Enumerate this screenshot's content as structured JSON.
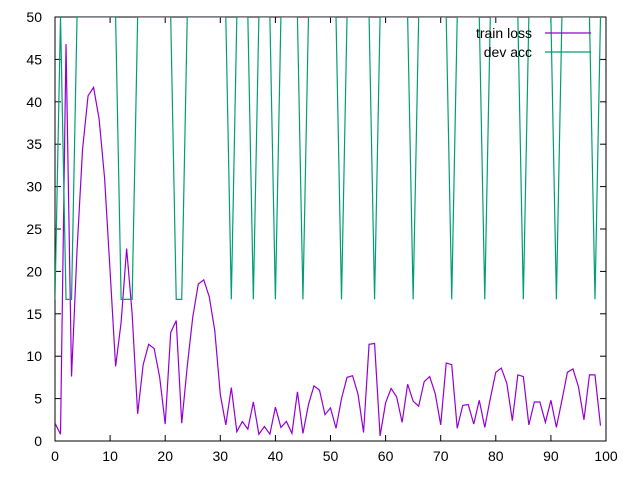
{
  "chart_data": {
    "type": "line",
    "title": "",
    "xlabel": "",
    "ylabel": "",
    "xlim": [
      0,
      100
    ],
    "ylim": [
      0,
      50
    ],
    "xticks": [
      0,
      10,
      20,
      30,
      40,
      50,
      60,
      70,
      80,
      90,
      100
    ],
    "yticks": [
      0,
      5,
      10,
      15,
      20,
      25,
      30,
      35,
      40,
      45,
      50
    ],
    "grid": false,
    "legend_position": "top-right",
    "series": [
      {
        "name": "train loss",
        "color": "#9400d3",
        "x": [
          0,
          1,
          2,
          3,
          4,
          5,
          6,
          7,
          8,
          9,
          10,
          11,
          12,
          13,
          14,
          15,
          16,
          17,
          18,
          19,
          20,
          21,
          22,
          23,
          24,
          25,
          26,
          27,
          28,
          29,
          30,
          31,
          32,
          33,
          34,
          35,
          36,
          37,
          38,
          39,
          40,
          41,
          42,
          43,
          44,
          45,
          46,
          47,
          48,
          49,
          50,
          51,
          52,
          53,
          54,
          55,
          56,
          57,
          58,
          59,
          60,
          61,
          62,
          63,
          64,
          65,
          66,
          67,
          68,
          69,
          70,
          71,
          72,
          73,
          74,
          75,
          76,
          77,
          78,
          79,
          80,
          81,
          82,
          83,
          84,
          85,
          86,
          87,
          88,
          89,
          90,
          91,
          92,
          93,
          94,
          95,
          96,
          97,
          98,
          99
        ],
        "y": [
          2.1,
          0.8,
          46.8,
          7.6,
          22.5,
          34.4,
          40.7,
          41.7,
          38.0,
          31.0,
          20.0,
          8.8,
          14.0,
          22.7,
          15.0,
          3.2,
          9.0,
          11.4,
          10.9,
          7.5,
          2.0,
          12.8,
          14.2,
          2.1,
          8.8,
          14.6,
          18.5,
          19.0,
          17.0,
          13.0,
          5.5,
          1.9,
          6.3,
          1.1,
          2.3,
          1.4,
          4.6,
          0.8,
          1.7,
          0.8,
          4.0,
          1.6,
          2.3,
          0.9,
          5.8,
          0.9,
          4.3,
          6.5,
          6.0,
          3.1,
          3.9,
          1.5,
          5.0,
          7.5,
          7.7,
          5.5,
          1.0,
          11.4,
          11.5,
          0.6,
          4.5,
          6.2,
          5.2,
          2.2,
          6.7,
          4.7,
          4.1,
          7.0,
          7.6,
          5.6,
          1.9,
          9.2,
          9.0,
          1.5,
          4.2,
          4.3,
          2.0,
          4.8,
          1.6,
          5.0,
          8.1,
          8.6,
          6.8,
          2.4,
          7.8,
          7.6,
          1.9,
          4.6,
          4.6,
          2.2,
          4.8,
          1.6,
          4.8,
          8.1,
          8.5,
          6.4,
          2.5,
          7.8,
          7.8,
          1.8
        ]
      },
      {
        "name": "dev acc",
        "color": "#009e73",
        "x": [
          0,
          1,
          2,
          3,
          4,
          11,
          12,
          13,
          14,
          15,
          21,
          22,
          23,
          24,
          31,
          32,
          33,
          35,
          36,
          37,
          39,
          40,
          41,
          44,
          45,
          46,
          51,
          52,
          53,
          57,
          58,
          59,
          64,
          65,
          66,
          71,
          72,
          73,
          77,
          78,
          79,
          84,
          85,
          86,
          90,
          91,
          92,
          97,
          98,
          99
        ],
        "y": [
          16.7,
          50,
          16.7,
          16.7,
          50,
          50,
          16.7,
          16.7,
          16.7,
          50,
          50,
          16.7,
          16.7,
          50,
          50,
          16.7,
          50,
          50,
          16.7,
          50,
          50,
          16.7,
          50,
          50,
          16.7,
          50,
          50,
          16.7,
          50,
          50,
          16.7,
          50,
          50,
          16.7,
          50,
          50,
          16.7,
          50,
          50,
          16.7,
          50,
          50,
          16.7,
          50,
          50,
          16.7,
          50,
          50,
          16.7,
          50
        ]
      }
    ]
  }
}
